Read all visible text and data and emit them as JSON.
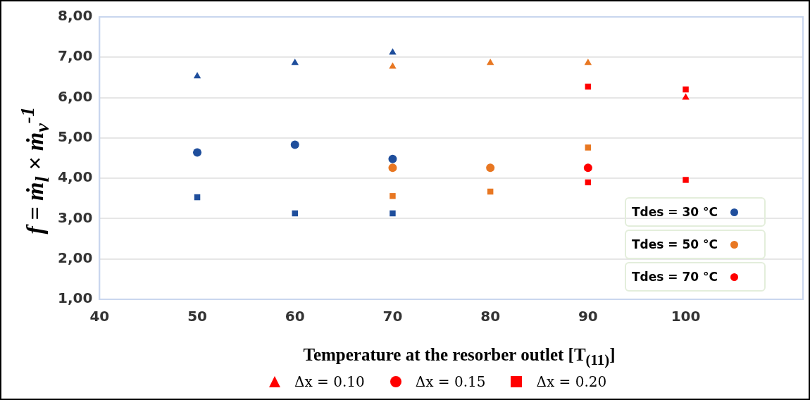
{
  "chart_data": {
    "type": "scatter",
    "xlabel": "Temperature at the resorber outlet [T$_{(11)}$]",
    "ylabel": "f = ṁ$_{l}$ × ṁ$_{v}$$^{-1}$",
    "xlim": [
      40,
      112
    ],
    "xticks": [
      40,
      50,
      60,
      70,
      80,
      90,
      100
    ],
    "ylim": [
      1,
      8
    ],
    "yticks": [
      {
        "value": 1,
        "label": "1,00"
      },
      {
        "value": 2,
        "label": "2,00"
      },
      {
        "value": 3,
        "label": "3,00"
      },
      {
        "value": 4,
        "label": "4,00"
      },
      {
        "value": 5,
        "label": "5,00"
      },
      {
        "value": 6,
        "label": "6,00"
      },
      {
        "value": 7,
        "label": "7,00"
      },
      {
        "value": 8,
        "label": "8,00"
      }
    ],
    "grid": "y",
    "legend": "bottom right",
    "annotations": [
      "Δx = 0.10",
      "Δx = 0.15",
      "Δx = 0.20"
    ],
    "series": [
      {
        "color": "#1f4e9c",
        "marker": "triangle",
        "x": [
          50,
          60,
          70
        ],
        "values": [
          6.53,
          6.86,
          7.12
        ]
      },
      {
        "name": "Tdes = 30 °C",
        "color": "#1f4e9c",
        "marker": "circle",
        "x": [
          50,
          60,
          70
        ],
        "values": [
          4.64,
          4.83,
          4.48
        ]
      },
      {
        "color": "#1f4e9c",
        "marker": "square",
        "x": [
          50,
          60,
          70
        ],
        "values": [
          3.53,
          3.13,
          3.13
        ]
      },
      {
        "color": "#e87722",
        "marker": "triangle",
        "x": [
          70,
          80,
          90
        ],
        "values": [
          6.77,
          6.86,
          6.86
        ]
      },
      {
        "name": "Tdes = 50 °C",
        "color": "#e87722",
        "marker": "circle",
        "x": [
          70,
          80
        ],
        "values": [
          4.26,
          4.26
        ]
      },
      {
        "color": "#e87722",
        "marker": "square",
        "x": [
          70,
          80,
          90
        ],
        "values": [
          3.56,
          3.67,
          4.76
        ]
      },
      {
        "color": "#ff0000",
        "marker": "triangle",
        "x": [
          100
        ],
        "values": [
          6.0
        ]
      },
      {
        "name": "Tdes = 70 °C",
        "color": "#ff0000",
        "marker": "circle",
        "x": [
          90
        ],
        "values": [
          4.26
        ]
      },
      {
        "color": "#ff0000",
        "marker": "square",
        "x": [
          90,
          90,
          100,
          100
        ],
        "values": [
          6.27,
          3.9,
          6.2,
          3.96
        ]
      }
    ]
  }
}
